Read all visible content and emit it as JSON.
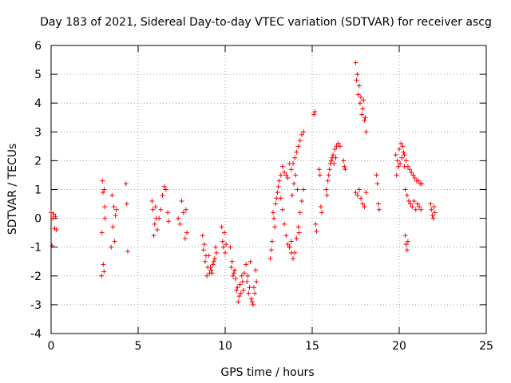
{
  "chart_data": {
    "type": "scatter",
    "title": "Day 183 of 2021, Sidereal Day-to-day VTEC variation (SDTVAR) for receiver ascg",
    "xlabel": "GPS time / hours",
    "ylabel": "SDTVAR / TECUs",
    "xlim": [
      0,
      25
    ],
    "ylim": [
      -4,
      6
    ],
    "xticks": [
      0,
      5,
      10,
      15,
      20,
      25
    ],
    "yticks": [
      -4,
      -3,
      -2,
      -1,
      0,
      1,
      2,
      3,
      4,
      5,
      6
    ],
    "grid": true,
    "marker": "+",
    "color": "#ff0000",
    "series": [
      {
        "name": "SDTVAR",
        "segments": [
          {
            "x": [
              0.0,
              0.05,
              0.1,
              0.15,
              0.2,
              0.25,
              0.3
            ],
            "y": [
              0.2,
              -0.95,
              0.0,
              0.15,
              -0.35,
              0.05,
              -0.4
            ]
          },
          {
            "x": [
              2.9,
              2.95,
              3.0,
              3.05,
              3.1
            ],
            "y": [
              -2.0,
              1.3,
              -1.6,
              1.0,
              0.0
            ]
          },
          {
            "x": [
              2.92,
              2.98,
              3.04,
              3.08
            ],
            "y": [
              -0.5,
              0.9,
              -1.85,
              0.4
            ]
          },
          {
            "x": [
              3.45,
              3.5,
              3.55,
              3.6,
              3.65,
              3.7,
              3.75
            ],
            "y": [
              -1.0,
              0.8,
              -0.3,
              0.4,
              -0.8,
              0.1,
              0.3
            ]
          },
          {
            "x": [
              4.3,
              4.35,
              4.4
            ],
            "y": [
              1.2,
              0.5,
              -1.15
            ]
          },
          {
            "x": [
              5.8,
              5.85,
              5.9,
              5.95,
              6.0,
              6.05,
              6.1
            ],
            "y": [
              0.6,
              0.3,
              -0.6,
              -0.2,
              0.4,
              0.0,
              -0.4
            ]
          },
          {
            "x": [
              6.2,
              6.3,
              6.4,
              6.5,
              6.6,
              6.7,
              6.75
            ],
            "y": [
              0.0,
              0.3,
              0.8,
              1.1,
              1.0,
              0.2,
              -0.1
            ]
          },
          {
            "x": [
              7.3,
              7.4,
              7.5,
              7.6,
              7.7,
              7.75,
              7.8
            ],
            "y": [
              0.0,
              -0.2,
              0.6,
              0.2,
              -0.7,
              0.3,
              -0.5
            ]
          },
          {
            "x": [
              8.7,
              8.8,
              8.9,
              9.0,
              9.1,
              9.2,
              9.3,
              9.4,
              9.5
            ],
            "y": [
              -0.6,
              -0.9,
              -1.3,
              -1.7,
              -1.9,
              -1.8,
              -1.6,
              -1.4,
              -1.2
            ]
          },
          {
            "x": [
              8.75,
              8.85,
              8.95,
              9.05,
              9.15,
              9.25,
              9.35,
              9.45
            ],
            "y": [
              -1.1,
              -1.5,
              -2.0,
              -1.3,
              -1.7,
              -1.9,
              -1.5,
              -1.0
            ]
          },
          {
            "x": [
              9.8,
              9.85,
              9.9,
              9.95,
              10.0,
              10.05
            ],
            "y": [
              -0.3,
              -0.8,
              -1.0,
              -0.5,
              -1.2,
              -0.9
            ]
          },
          {
            "x": [
              10.3,
              10.4,
              10.5,
              10.6,
              10.7,
              10.8,
              10.9,
              11.0,
              11.1
            ],
            "y": [
              -1.0,
              -1.5,
              -1.9,
              -2.1,
              -2.4,
              -2.7,
              -2.6,
              -2.2,
              -1.9
            ]
          },
          {
            "x": [
              10.35,
              10.45,
              10.55,
              10.65,
              10.75,
              10.85,
              10.95,
              11.05
            ],
            "y": [
              -1.7,
              -2.0,
              -1.8,
              -2.5,
              -2.9,
              -2.3,
              -2.0,
              -2.5
            ]
          },
          {
            "x": [
              11.2,
              11.3,
              11.4,
              11.5,
              11.6,
              11.7,
              11.8
            ],
            "y": [
              -1.6,
              -2.0,
              -2.4,
              -2.8,
              -3.0,
              -2.6,
              -2.2
            ]
          },
          {
            "x": [
              11.25,
              11.35,
              11.45,
              11.55,
              11.65,
              11.75
            ],
            "y": [
              -2.2,
              -2.6,
              -1.5,
              -2.9,
              -2.4,
              -1.8
            ]
          },
          {
            "x": [
              12.6,
              12.7,
              12.8,
              12.9,
              13.0,
              13.1,
              13.2
            ],
            "y": [
              -1.4,
              -0.8,
              0.0,
              0.5,
              0.9,
              1.3,
              1.5
            ]
          },
          {
            "x": [
              12.65,
              12.75,
              12.85,
              12.95,
              13.05
            ],
            "y": [
              -1.1,
              0.2,
              -0.3,
              0.7,
              1.1
            ]
          },
          {
            "x": [
              13.2,
              13.3,
              13.4,
              13.5,
              13.6,
              13.7,
              13.8
            ],
            "y": [
              0.7,
              0.3,
              -0.2,
              -0.6,
              -0.9,
              -1.0,
              -0.8
            ]
          },
          {
            "x": [
              13.3,
              13.4,
              13.5,
              13.6,
              13.7
            ],
            "y": [
              1.8,
              1.6,
              1.5,
              1.4,
              1.9
            ]
          },
          {
            "x": [
              13.7,
              13.8,
              13.9,
              14.0,
              14.1,
              14.2,
              14.3,
              14.4,
              14.5
            ],
            "y": [
              -1.0,
              -1.2,
              -1.4,
              -1.2,
              -0.7,
              -0.3,
              0.2,
              0.6,
              1.0
            ]
          },
          {
            "x": [
              13.8,
              13.9,
              14.0,
              14.1,
              14.2,
              14.3,
              14.4,
              14.5
            ],
            "y": [
              1.7,
              1.9,
              2.1,
              2.3,
              2.5,
              2.7,
              2.9,
              3.0
            ]
          },
          {
            "x": [
              13.85,
              13.95,
              14.05,
              14.15,
              14.25
            ],
            "y": [
              0.8,
              1.2,
              1.5,
              1.0,
              -0.5
            ]
          },
          {
            "x": [
              15.1,
              15.15,
              15.2,
              15.25
            ],
            "y": [
              3.6,
              3.7,
              -0.2,
              -0.45
            ]
          },
          {
            "x": [
              15.4,
              15.45,
              15.5,
              15.55
            ],
            "y": [
              1.7,
              1.5,
              0.4,
              0.2
            ]
          },
          {
            "x": [
              15.8,
              15.9,
              16.0,
              16.1,
              16.2,
              16.3,
              16.4,
              16.5,
              16.6
            ],
            "y": [
              1.0,
              1.3,
              1.7,
              2.0,
              2.2,
              2.4,
              2.5,
              2.6,
              2.5
            ]
          },
          {
            "x": [
              15.85,
              15.95,
              16.05,
              16.15,
              16.25,
              16.35
            ],
            "y": [
              0.8,
              1.5,
              1.9,
              2.1,
              1.9,
              2.1
            ]
          },
          {
            "x": [
              16.8,
              16.85,
              16.9
            ],
            "y": [
              2.0,
              1.8,
              1.7
            ]
          },
          {
            "x": [
              17.5,
              17.6,
              17.7,
              17.8,
              17.9,
              18.0,
              18.1
            ],
            "y": [
              5.4,
              5.0,
              4.6,
              4.2,
              3.8,
              3.4,
              3.0
            ]
          },
          {
            "x": [
              17.55,
              17.65,
              17.75,
              17.85,
              17.95,
              18.05
            ],
            "y": [
              4.8,
              4.3,
              4.0,
              3.6,
              4.1,
              3.5
            ]
          },
          {
            "x": [
              17.5,
              17.6,
              17.7,
              17.8,
              17.9,
              18.0,
              18.1
            ],
            "y": [
              0.9,
              0.8,
              1.0,
              0.7,
              0.5,
              0.4,
              0.9
            ]
          },
          {
            "x": [
              18.7,
              18.75,
              18.8,
              18.85
            ],
            "y": [
              1.5,
              1.2,
              0.5,
              0.3
            ]
          },
          {
            "x": [
              19.8,
              19.9,
              20.0,
              20.1,
              20.2,
              20.3,
              20.4
            ],
            "y": [
              2.2,
              2.0,
              2.4,
              2.6,
              2.5,
              2.2,
              2.0
            ]
          },
          {
            "x": [
              19.85,
              19.95,
              20.05,
              20.15,
              20.25
            ],
            "y": [
              1.5,
              1.8,
              1.9,
              2.1,
              2.3
            ]
          },
          {
            "x": [
              20.3,
              20.35,
              20.4,
              20.45,
              20.5
            ],
            "y": [
              1.8,
              -0.6,
              -0.9,
              -1.1,
              -0.8
            ]
          },
          {
            "x": [
              20.5,
              20.6,
              20.7,
              20.8,
              20.9,
              21.0,
              21.1,
              21.2,
              21.3
            ],
            "y": [
              1.8,
              1.7,
              1.6,
              1.5,
              1.4,
              1.3,
              1.3,
              1.2,
              1.2
            ]
          },
          {
            "x": [
              20.35,
              20.45,
              20.55,
              20.65,
              20.75,
              20.85,
              20.95,
              21.05,
              21.15,
              21.25
            ],
            "y": [
              1.0,
              0.8,
              0.6,
              0.5,
              0.4,
              0.6,
              0.3,
              0.5,
              0.4,
              0.3
            ]
          },
          {
            "x": [
              21.8,
              21.85,
              21.9,
              21.95,
              22.0,
              22.05
            ],
            "y": [
              0.5,
              0.3,
              0.1,
              0.0,
              0.4,
              0.2
            ]
          }
        ]
      }
    ]
  }
}
